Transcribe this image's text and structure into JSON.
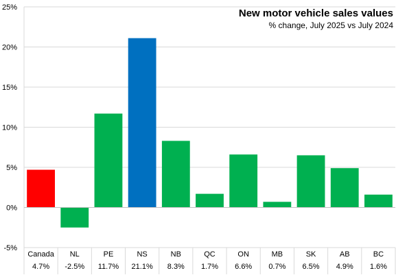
{
  "chart_data": {
    "type": "bar",
    "title": "New motor vehicle sales values",
    "subtitle": "% change, July 2025 vs July 2024",
    "categories": [
      "Canada",
      "NL",
      "PE",
      "NS",
      "NB",
      "QC",
      "ON",
      "MB",
      "SK",
      "AB",
      "BC"
    ],
    "values": [
      4.7,
      -2.5,
      11.7,
      21.1,
      8.3,
      1.7,
      6.6,
      0.7,
      6.5,
      4.9,
      1.6
    ],
    "value_labels": [
      "4.7%",
      "-2.5%",
      "11.7%",
      "21.1%",
      "8.3%",
      "1.7%",
      "6.6%",
      "0.7%",
      "6.5%",
      "4.9%",
      "1.6%"
    ],
    "bar_colors": [
      "#ff0000",
      "#00b050",
      "#00b050",
      "#0070c0",
      "#00b050",
      "#00b050",
      "#00b050",
      "#00b050",
      "#00b050",
      "#00b050",
      "#00b050"
    ],
    "ylim": [
      -5,
      25
    ],
    "yticks": [
      -5,
      0,
      5,
      10,
      15,
      20,
      25
    ],
    "ytick_labels": [
      "-5%",
      "0%",
      "5%",
      "10%",
      "15%",
      "20%",
      "25%"
    ],
    "gridlines": true,
    "legend": false,
    "xlabel": "",
    "ylabel": ""
  }
}
